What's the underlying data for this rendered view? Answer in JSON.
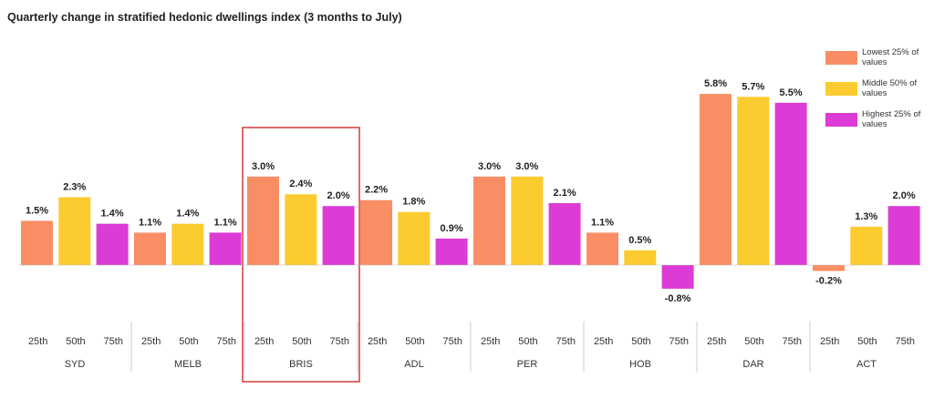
{
  "chart_data": {
    "type": "bar",
    "title": "Quarterly change in stratified hedonic dwellings index (3 months to July)",
    "groups": [
      "SYD",
      "MELB",
      "BRIS",
      "ADL",
      "PER",
      "HOB",
      "DAR",
      "ACT"
    ],
    "sub_categories": [
      "25th",
      "50th",
      "75th"
    ],
    "series": [
      {
        "name": "Lowest 25% of values",
        "color": "#f98e65",
        "values": [
          1.5,
          1.1,
          3.0,
          2.2,
          3.0,
          1.1,
          5.8,
          -0.2
        ]
      },
      {
        "name": "Middle 50% of values",
        "color": "#fccb2f",
        "values": [
          2.3,
          1.4,
          2.4,
          1.8,
          3.0,
          0.5,
          5.7,
          1.3
        ]
      },
      {
        "name": "Highest 25% of values",
        "color": "#dc3bd6",
        "values": [
          1.4,
          1.1,
          2.0,
          0.9,
          2.1,
          -0.8,
          5.5,
          2.0
        ]
      }
    ],
    "value_labels": [
      [
        "1.5%",
        "2.3%",
        "1.4%"
      ],
      [
        "1.1%",
        "1.4%",
        "1.1%"
      ],
      [
        "3.0%",
        "2.4%",
        "2.0%"
      ],
      [
        "2.2%",
        "1.8%",
        "0.9%"
      ],
      [
        "3.0%",
        "3.0%",
        "2.1%"
      ],
      [
        "1.1%",
        "0.5%",
        "-0.8%"
      ],
      [
        "5.8%",
        "5.7%",
        "5.5%"
      ],
      [
        "-0.2%",
        "1.3%",
        "2.0%"
      ]
    ],
    "highlight_group": "BRIS",
    "highlight_color": "#d63a3a",
    "legend_position": "top-right",
    "grid": false,
    "xlabel": "",
    "ylabel": ""
  }
}
